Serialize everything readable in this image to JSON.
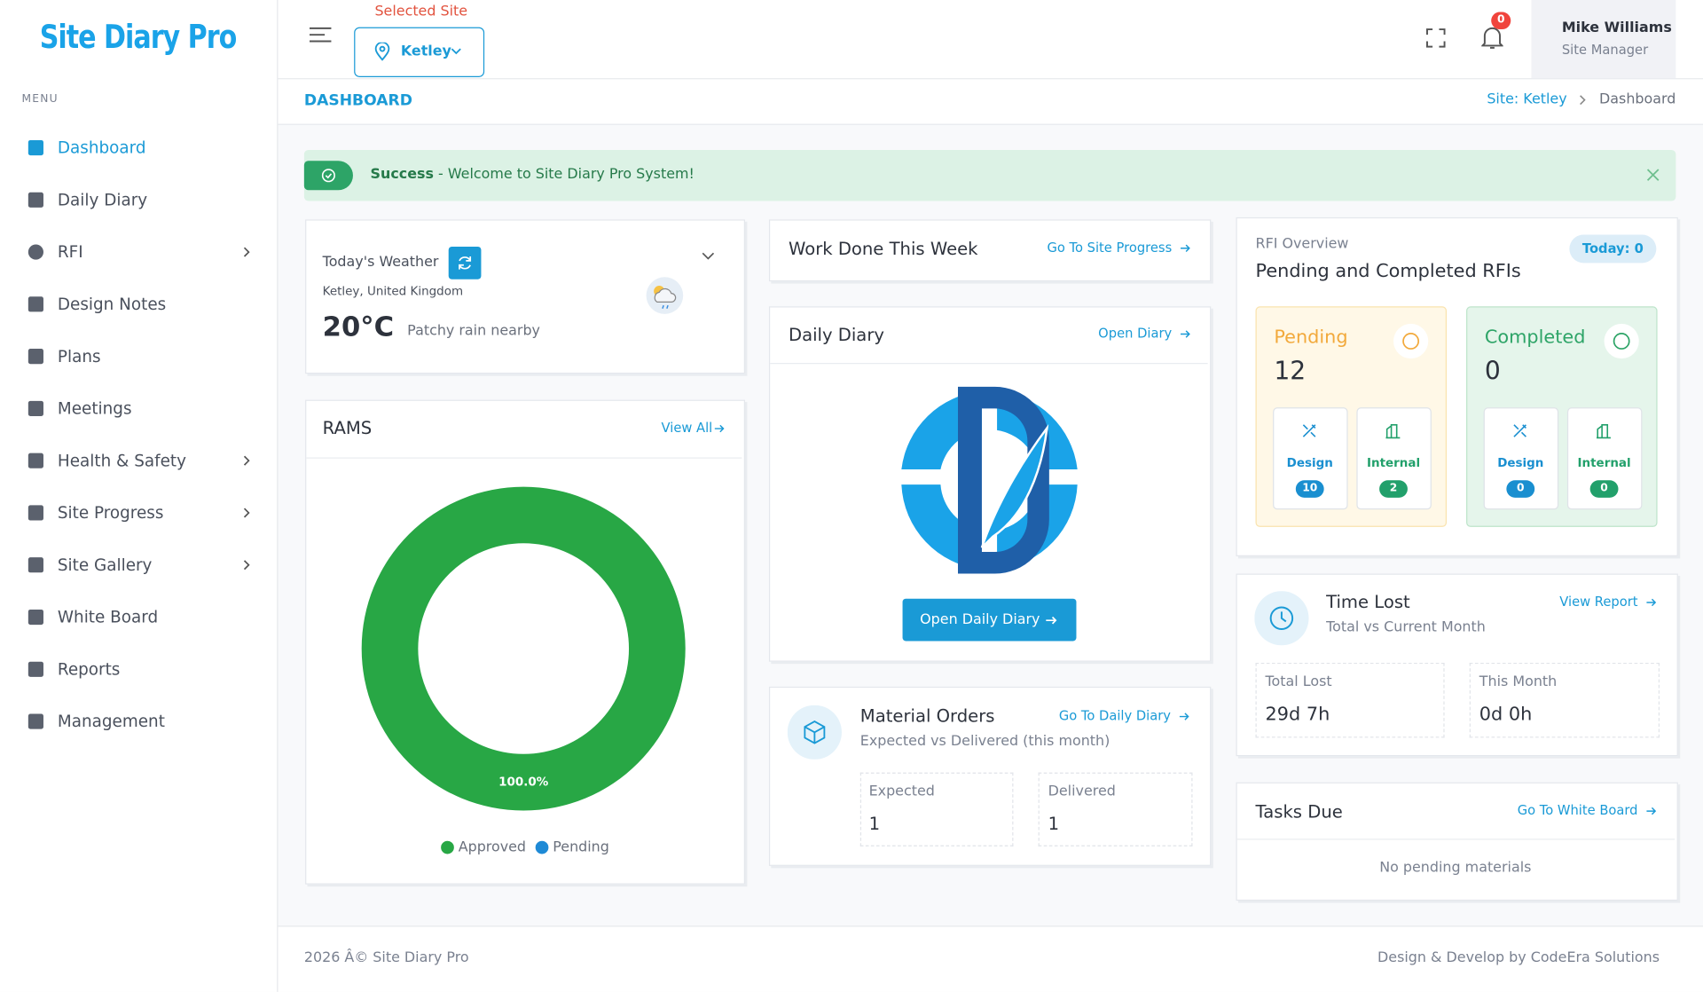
{
  "sidebar": {
    "logo": "Site Diary Pro",
    "menu_label": "MENU",
    "items": [
      "Dashboard",
      "Daily Diary",
      "RFI",
      "Design Notes",
      "Plans",
      "Meetings",
      "Health & Safety",
      "Site Progress",
      "Site Gallery",
      "White Board",
      "Reports",
      "Management"
    ]
  },
  "topbar": {
    "selected_site_label": "Selected Site",
    "site": "Ketley",
    "notifications": 0,
    "user_name": "Mike Williams",
    "user_role": "Site Manager"
  },
  "page_header": {
    "title": "DASHBOARD",
    "breadcrumb": [
      "Site: Ketley",
      "Dashboard"
    ]
  },
  "alert": {
    "title": "Success",
    "message": "- Welcome to Site Diary Pro System!"
  },
  "weather": {
    "title": "Today's Weather",
    "location": "Ketley, United Kingdom",
    "temperature": "20°C",
    "condition": "Patchy rain nearby"
  },
  "rams": {
    "title": "RAMS",
    "link": "View All",
    "chart": {
      "type": "donut",
      "categories": [
        "Approved",
        "Pending"
      ],
      "values": [
        100,
        0
      ],
      "value_labels": [
        "100.0%",
        null
      ],
      "colors": [
        "#28a745",
        "#1e8ad6"
      ]
    }
  },
  "work_done": {
    "title": "Work Done This Week",
    "link": "Go To Site Progress"
  },
  "daily_diary": {
    "title": "Daily Diary",
    "link": "Open Diary",
    "button": "Open Daily Diary"
  },
  "material_orders": {
    "title": "Material Orders",
    "subtitle": "Expected vs Delivered (this month)",
    "link": "Go To Daily Diary",
    "boxes": [
      {
        "label": "Expected",
        "value": 1
      },
      {
        "label": "Delivered",
        "value": 1
      }
    ]
  },
  "rfi": {
    "overline": "RFI Overview",
    "title": "Pending and Completed RFIs",
    "badge": "Today: 0",
    "groups": [
      {
        "label": "Pending",
        "count": 12,
        "items": [
          {
            "label": "Design",
            "count": 10
          },
          {
            "label": "Internal",
            "count": 2
          }
        ]
      },
      {
        "label": "Completed",
        "count": 0,
        "items": [
          {
            "label": "Design",
            "count": 0
          },
          {
            "label": "Internal",
            "count": 0
          }
        ]
      }
    ]
  },
  "time_lost": {
    "title": "Time Lost",
    "subtitle": "Total vs Current Month",
    "link": "View Report",
    "boxes": [
      {
        "label": "Total Lost",
        "value": "29d 7h"
      },
      {
        "label": "This Month",
        "value": "0d 0h"
      }
    ]
  },
  "tasks_due": {
    "title": "Tasks Due",
    "link": "Go To White Board",
    "empty": "No pending materials"
  },
  "footer": {
    "left": "2026 Â© Site Diary Pro",
    "right": "Design & Develop by CodeEra Solutions"
  }
}
